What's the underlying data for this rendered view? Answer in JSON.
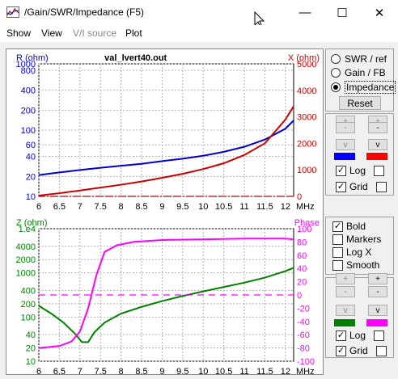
{
  "window": {
    "title": "/Gain/SWR/Impedance (F5)",
    "minimize_glyph": "—",
    "maximize_glyph": "☐",
    "close_glyph": "✕"
  },
  "menu": {
    "items": [
      "Show",
      "View",
      "V/I source",
      "Plot"
    ],
    "disabled_index": 2
  },
  "colors": {
    "blue": "#0000cc",
    "red": "#cc0000",
    "green": "#008000",
    "magenta": "#ff00ff",
    "grid": "#b0b0b0"
  },
  "chart_data": [
    {
      "type": "line",
      "title": "val_lvert40.out",
      "left_axis_label": "R (ohm)",
      "right_axis_label": "X (ohm)",
      "x_unit": "MHz",
      "x_ticks": [
        "6",
        "6.5",
        "7",
        "7.5",
        "8",
        "8.5",
        "9",
        "9.5",
        "10",
        "10.5",
        "11",
        "11.5",
        "12"
      ],
      "x_range": [
        6,
        12.2
      ],
      "left_scale": "log",
      "left_range": [
        10,
        1000
      ],
      "left_ticks": [
        "1000",
        "800",
        "400",
        "200",
        "100",
        "60",
        "40",
        "20",
        "10"
      ],
      "right_range": [
        0,
        5000
      ],
      "right_ticks": [
        "5000",
        "4000",
        "3000",
        "2000",
        "1000",
        "0"
      ],
      "series": [
        {
          "axis": "left",
          "color": "blue",
          "x": [
            6,
            6.5,
            7,
            7.5,
            8,
            8.5,
            9,
            9.5,
            10,
            10.5,
            11,
            11.5,
            12,
            12.2
          ],
          "values": [
            21,
            23,
            25,
            27,
            29,
            31,
            34,
            37,
            41,
            47,
            56,
            72,
            105,
            140
          ]
        },
        {
          "axis": "right",
          "color": "red",
          "x": [
            6,
            6.5,
            7,
            7.5,
            8,
            8.5,
            9,
            9.5,
            10,
            10.5,
            11,
            11.5,
            12,
            12.2
          ],
          "values": [
            30,
            120,
            220,
            330,
            440,
            560,
            700,
            850,
            1030,
            1250,
            1560,
            2000,
            2900,
            3400
          ]
        },
        {
          "axis": "right",
          "color": "red",
          "dashed": true,
          "x": [
            6,
            12.2
          ],
          "values": [
            0,
            0
          ]
        }
      ]
    },
    {
      "type": "line",
      "title": "",
      "left_axis_label": "Z (ohm)",
      "right_axis_label": "Phase",
      "x_unit": "MHz",
      "x_ticks": [
        "6",
        "6.5",
        "7",
        "7.5",
        "8",
        "8.5",
        "9",
        "9.5",
        "10",
        "10.5",
        "11",
        "11.5",
        "12"
      ],
      "x_range": [
        6,
        12.2
      ],
      "left_scale": "log",
      "left_range": [
        10,
        10000
      ],
      "left_ticks": [
        "1.e4",
        "4000",
        "2000",
        "1000",
        "400",
        "200",
        "100",
        "40",
        "20",
        "10"
      ],
      "right_range": [
        -100,
        100
      ],
      "right_ticks": [
        "100",
        "80",
        "60",
        "40",
        "20",
        "0",
        "-20",
        "-40",
        "-60",
        "-80",
        "-100"
      ],
      "series": [
        {
          "axis": "left",
          "color": "green",
          "x": [
            6,
            6.3,
            6.6,
            6.9,
            7.05,
            7.2,
            7.35,
            7.6,
            8,
            8.5,
            9,
            9.5,
            10,
            10.5,
            11,
            11.5,
            12,
            12.2
          ],
          "values": [
            180,
            120,
            75,
            40,
            27,
            27,
            45,
            75,
            120,
            170,
            230,
            300,
            380,
            480,
            600,
            780,
            1100,
            1300
          ]
        },
        {
          "axis": "right",
          "color": "magenta",
          "x": [
            6,
            6.5,
            6.8,
            7,
            7.2,
            7.4,
            7.6,
            7.9,
            8.3,
            9,
            10,
            11,
            12,
            12.2
          ],
          "values": [
            -80,
            -77,
            -70,
            -55,
            -20,
            30,
            65,
            75,
            80,
            83,
            84,
            85,
            85,
            84
          ]
        },
        {
          "axis": "right",
          "color": "magenta",
          "dashed": true,
          "x": [
            6,
            12.2
          ],
          "values": [
            0,
            0
          ]
        }
      ]
    }
  ],
  "side": {
    "plot_modes": [
      "SWR / ref",
      "Gain / FB",
      "Impedance"
    ],
    "selected_mode": 2,
    "reset_label": "Reset",
    "top_panel": {
      "plus_labels": [
        "+",
        "+"
      ],
      "minus_labels": [
        "-",
        "-"
      ],
      "v_labels": [
        "v",
        "v"
      ],
      "swatches": [
        "#0000ff",
        "#ff0000"
      ],
      "log_label": "Log",
      "log_checked": true,
      "log_right_checked": false,
      "grid_label": "Grid",
      "grid_checked": true,
      "grid_right_checked": false
    },
    "options": [
      {
        "label": "Bold",
        "checked": true
      },
      {
        "label": "Markers",
        "checked": false
      },
      {
        "label": "Log X",
        "checked": false
      },
      {
        "label": "Smooth",
        "checked": false
      }
    ],
    "bottom_panel": {
      "plus_labels": [
        "+",
        "+"
      ],
      "minus_labels": [
        "-",
        "-"
      ],
      "v_labels": [
        "v",
        "v"
      ],
      "swatches": [
        "#008000",
        "#ff00ff"
      ],
      "log_label": "Log",
      "log_checked": true,
      "log_right_checked": false,
      "grid_label": "Grid",
      "grid_checked": true,
      "grid_right_checked": false
    }
  }
}
